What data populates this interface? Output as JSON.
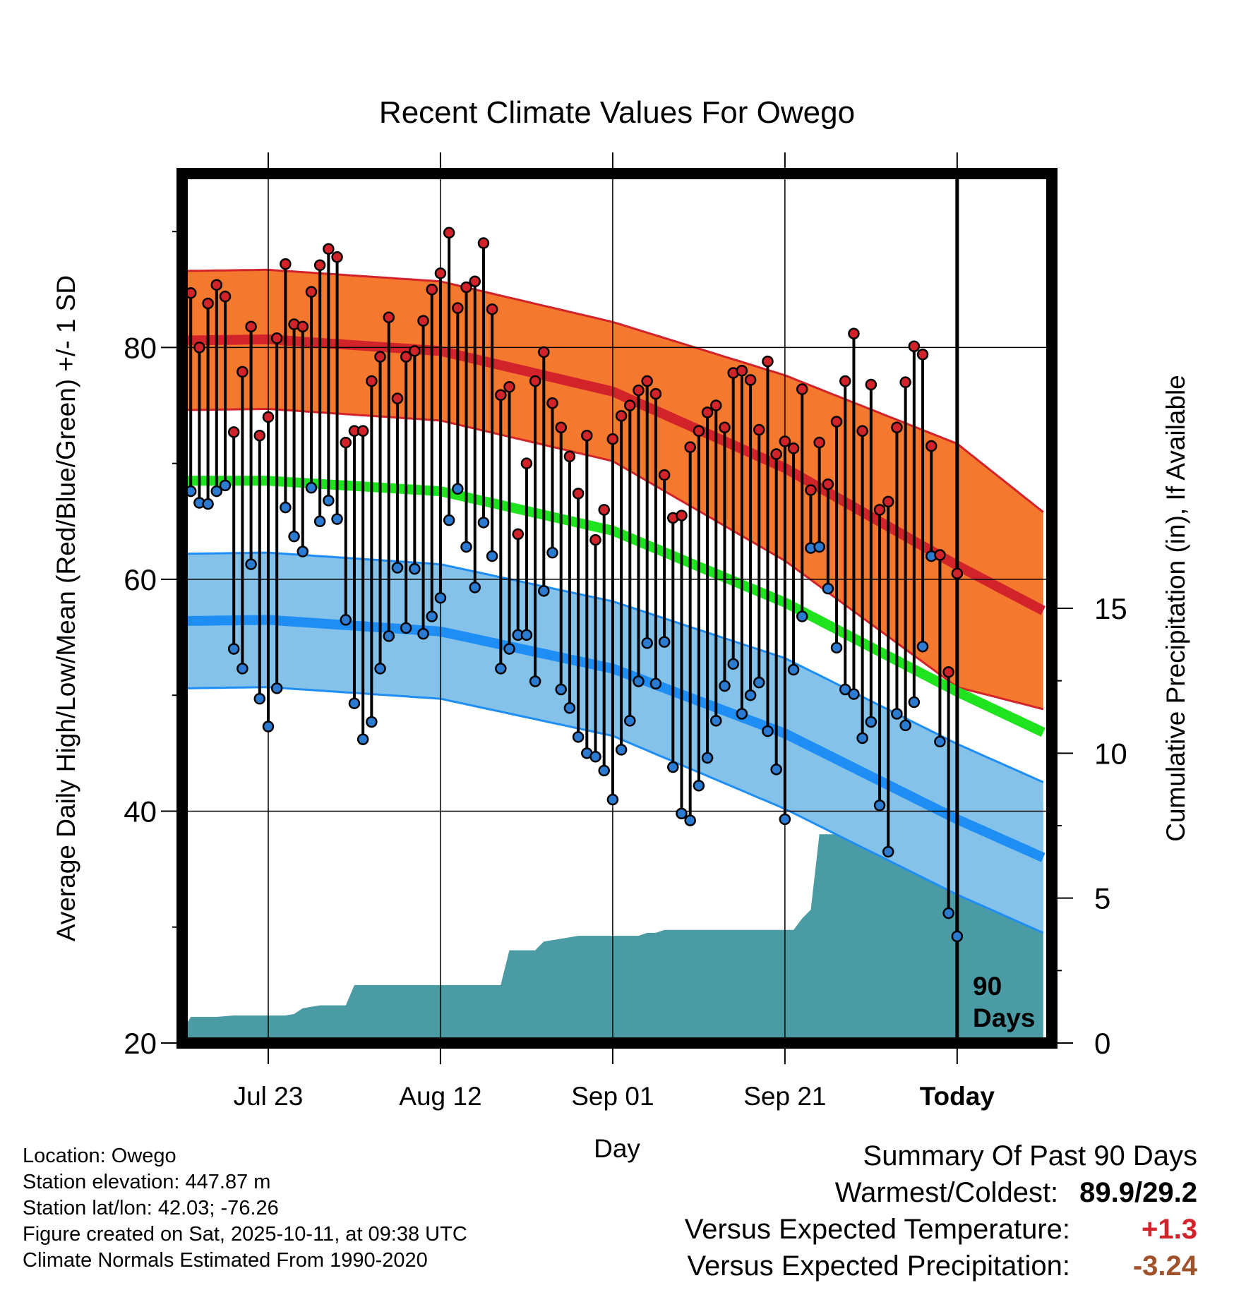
{
  "chart_data": {
    "type": "line",
    "title": "Recent Climate Values For Owego",
    "xlabel": "Day",
    "ylabel": "Average Daily High/Low/Mean (Red/Blue/Green) +/- 1 SD",
    "y2label": "Cumulative Precipitation (in), If Available",
    "xlim_days": [
      -90,
      11
    ],
    "ylim": [
      20,
      95
    ],
    "y2lim": [
      0,
      30
    ],
    "yticks": [
      20,
      40,
      60,
      80
    ],
    "y2ticks": [
      0,
      5,
      10,
      15
    ],
    "xticks": [
      {
        "day": -80,
        "label": "Jul 23"
      },
      {
        "day": -60,
        "label": "Aug 12"
      },
      {
        "day": -40,
        "label": "Sep 01"
      },
      {
        "day": -20,
        "label": "Sep 21"
      },
      {
        "day": 0,
        "label": "Today"
      }
    ],
    "today_marker": {
      "day": 0,
      "label_line1": "90",
      "label_line2": "Days"
    },
    "normals": {
      "days": [
        -90,
        -80,
        -60,
        -40,
        -20,
        0,
        10
      ],
      "high_mean": [
        80.6,
        80.7,
        79.7,
        76.2,
        69.6,
        61.2,
        57.3
      ],
      "high_sd": [
        6.0,
        6.0,
        6.0,
        6.0,
        8.0,
        10.5,
        8.5
      ],
      "low_mean": [
        56.4,
        56.5,
        55.5,
        52.3,
        46.7,
        39.3,
        36.0
      ],
      "low_sd": [
        5.8,
        5.8,
        5.8,
        5.8,
        6.5,
        6.5,
        6.5
      ],
      "avg_mean": [
        68.5,
        68.5,
        67.6,
        64.2,
        58.0,
        50.3,
        46.8
      ]
    },
    "series": [
      {
        "name": "Daily High",
        "color": "#d3232a",
        "values": [
          84.7,
          80.0,
          83.8,
          85.4,
          84.4,
          72.7,
          77.9,
          81.8,
          72.4,
          74.0,
          80.8,
          87.2,
          82.0,
          81.8,
          84.8,
          87.1,
          88.5,
          87.8,
          71.8,
          72.8,
          72.8,
          77.1,
          79.2,
          82.6,
          75.6,
          79.2,
          79.7,
          82.3,
          85.0,
          86.4,
          89.9,
          83.4,
          85.2,
          85.7,
          89.0,
          83.3,
          75.9,
          76.6,
          63.9,
          70.0,
          77.1,
          79.6,
          75.2,
          73.1,
          70.6,
          67.4,
          72.4,
          63.4,
          66.0,
          72.1,
          74.1,
          75.0,
          76.3,
          77.1,
          76.0,
          69.0,
          65.3,
          65.5,
          71.4,
          72.8,
          74.4,
          75.0,
          73.1,
          77.8,
          78.0,
          77.2,
          72.9,
          78.8,
          70.8,
          71.9,
          71.3,
          76.4,
          67.7,
          71.8,
          68.2,
          73.6,
          77.1,
          81.2,
          72.8,
          76.8,
          66.0,
          66.7,
          73.1,
          77.0,
          80.1,
          79.4,
          71.5,
          62.1,
          52.0,
          60.5
        ]
      },
      {
        "name": "Daily Low",
        "color": "#2a7bd1",
        "values": [
          67.6,
          66.6,
          66.5,
          67.6,
          68.1,
          54.0,
          52.3,
          61.3,
          49.7,
          47.3,
          50.6,
          66.2,
          63.7,
          62.4,
          67.9,
          65.0,
          66.8,
          65.2,
          56.5,
          49.3,
          46.2,
          47.7,
          52.3,
          55.1,
          61.0,
          55.8,
          60.9,
          55.3,
          56.8,
          58.4,
          65.1,
          67.8,
          62.8,
          59.3,
          64.9,
          62.0,
          52.3,
          54.0,
          55.2,
          55.2,
          51.2,
          59.0,
          62.3,
          50.5,
          48.9,
          46.4,
          45.0,
          44.7,
          43.5,
          41.0,
          45.3,
          47.8,
          51.2,
          54.5,
          51.0,
          54.6,
          43.8,
          39.8,
          39.2,
          42.2,
          44.6,
          47.8,
          50.8,
          52.7,
          48.4,
          50.0,
          51.1,
          46.9,
          43.6,
          39.3,
          52.2,
          56.8,
          62.7,
          62.8,
          59.2,
          54.1,
          50.5,
          50.1,
          46.3,
          47.7,
          40.5,
          36.5,
          48.4,
          47.4,
          49.4,
          54.2,
          62.0,
          46.0,
          31.2,
          29.2
        ]
      }
    ],
    "precip_cumulative": {
      "days": [
        -90,
        -89,
        -88,
        -86,
        -84,
        -82,
        -80,
        -78,
        -77,
        -76,
        -74,
        -72,
        -71,
        -70,
        -68,
        -66,
        -63,
        -60,
        -56,
        -54,
        -53,
        -52,
        -50,
        -49,
        -48,
        -46,
        -44,
        -43,
        -42,
        -41,
        -40,
        -38,
        -37,
        -36,
        -35,
        -34,
        -32,
        -30,
        -28,
        -26,
        -24,
        -22,
        -20,
        -19,
        -18,
        -17,
        -16,
        -15,
        -14,
        -13,
        -12,
        -11,
        -10,
        -9,
        -8,
        -7,
        -6,
        -5,
        -4,
        -3,
        -2,
        -1,
        0,
        10
      ],
      "values": [
        0.4,
        0.9,
        0.9,
        0.9,
        0.95,
        0.95,
        0.95,
        0.95,
        1.0,
        1.2,
        1.3,
        1.3,
        1.3,
        2.0,
        2.0,
        2.0,
        2.0,
        2.0,
        2.0,
        2.0,
        2.0,
        3.2,
        3.2,
        3.2,
        3.5,
        3.6,
        3.7,
        3.7,
        3.7,
        3.7,
        3.7,
        3.7,
        3.7,
        3.8,
        3.8,
        3.9,
        3.9,
        3.9,
        3.9,
        3.9,
        3.9,
        3.9,
        3.9,
        3.9,
        4.3,
        4.6,
        7.2,
        7.2,
        7.2,
        7.2,
        7.2,
        7.2,
        7.2,
        7.2,
        7.2,
        7.2,
        7.2,
        7.2,
        7.6,
        8.3,
        8.3,
        8.3,
        8.3,
        8.3
      ]
    }
  },
  "footer": {
    "location": "Location: Owego",
    "elevation": "Station elevation: 447.87 m",
    "latlon": "Station lat/lon: 42.03; -76.26",
    "created": "Figure created on Sat, 2025-10-11, at 09:38 UTC",
    "normals": "Climate Normals Estimated From 1990-2020"
  },
  "summary": {
    "title": "Summary Of Past 90 Days",
    "warm_cold_label": "Warmest/Coldest:",
    "warm_cold_value": "89.9/29.2",
    "temp_label": "Versus Expected Temperature:",
    "temp_value": "+1.3",
    "temp_color": "#d3232a",
    "precip_label": "Versus Expected Precipitation:",
    "precip_value": "-3.24",
    "precip_color": "#a0522d"
  },
  "colors": {
    "high_band": "#f5782f",
    "high_line": "#d3232a",
    "low_band": "#84c2ea",
    "low_line": "#1e8ef5",
    "mean_line": "#1ee31e",
    "precip_fill": "#4a9ba4"
  }
}
